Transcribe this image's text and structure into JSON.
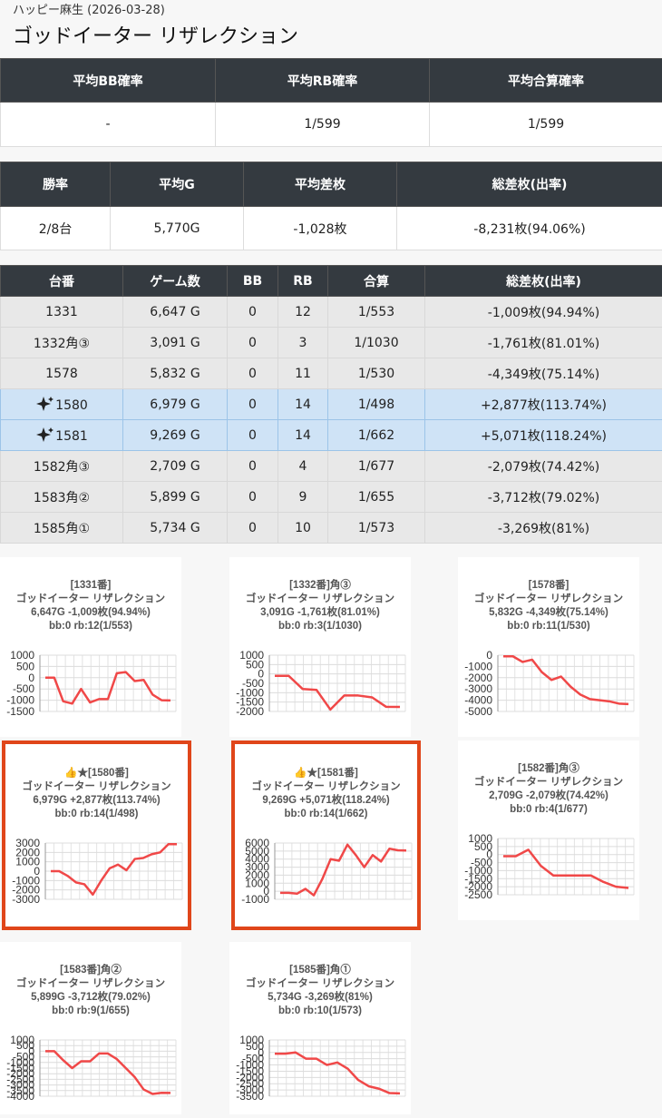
{
  "header": {
    "subtitle": "ハッピー麻生 (2026-03-28)",
    "title": "ゴッドイーター リザレクション"
  },
  "summary1": {
    "headers": [
      "平均BB確率",
      "平均RB確率",
      "平均合算確率"
    ],
    "row": [
      "-",
      "1/599",
      "1/599"
    ]
  },
  "summary2": {
    "headers": [
      "勝率",
      "平均G",
      "平均差枚",
      "総差枚(出率)"
    ],
    "row": [
      "2/8台",
      "5,770G",
      "-1,028枚",
      "-8,231枚(94.06%)"
    ]
  },
  "machines": {
    "headers": [
      "台番",
      "ゲーム数",
      "BB",
      "RB",
      "合算",
      "総差枚(出率)"
    ],
    "rows": [
      {
        "cells": [
          "1331",
          "6,647 G",
          "0",
          "12",
          "1/553",
          "-1,009枚(94.94%)"
        ]
      },
      {
        "cells": [
          "1332角③",
          "3,091 G",
          "0",
          "3",
          "1/1030",
          "-1,761枚(81.01%)"
        ]
      },
      {
        "cells": [
          "1578",
          "5,832 G",
          "0",
          "11",
          "1/530",
          "-4,349枚(75.14%)"
        ]
      },
      {
        "cells": [
          "1580",
          "6,979 G",
          "0",
          "14",
          "1/498",
          "+2,877枚(113.74%)"
        ],
        "highlight": true
      },
      {
        "cells": [
          "1581",
          "9,269 G",
          "0",
          "14",
          "1/662",
          "+5,071枚(118.24%)"
        ],
        "highlight": true
      },
      {
        "cells": [
          "1582角③",
          "2,709 G",
          "0",
          "4",
          "1/677",
          "-2,079枚(74.42%)"
        ]
      },
      {
        "cells": [
          "1583角②",
          "5,899 G",
          "0",
          "9",
          "1/655",
          "-3,712枚(79.02%)"
        ]
      },
      {
        "cells": [
          "1585角①",
          "5,734 G",
          "0",
          "10",
          "1/573",
          "-3,269枚(81%)"
        ]
      }
    ]
  },
  "charts": [
    {
      "type": "line",
      "lines": [
        "[1331番]",
        "ゴッドイーター リザレクション",
        "6,647G -1,009枚(94.94%)",
        "bb:0 rb:12(1/553)"
      ],
      "color": "#f04848",
      "ylim": [
        -1500,
        1000
      ],
      "yticks": [
        1000,
        500,
        0,
        -500,
        -1000,
        -1500
      ],
      "values": [
        0,
        0,
        -1050,
        -1150,
        -500,
        -1100,
        -950,
        -950,
        200,
        250,
        -150,
        -100,
        -750,
        -1000,
        -1009
      ]
    },
    {
      "type": "line",
      "lines": [
        "[1332番]角③",
        "ゴッドイーター リザレクション",
        "3,091G -1,761枚(81.01%)",
        "bb:0 rb:3(1/1030)"
      ],
      "color": "#f04848",
      "ylim": [
        -2000,
        1000
      ],
      "yticks": [
        1000,
        500,
        0,
        -500,
        -1000,
        -1500,
        -2000
      ],
      "values": [
        -100,
        -100,
        -800,
        -850,
        -1900,
        -1150,
        -1150,
        -1250,
        -1750,
        -1761
      ]
    },
    {
      "type": "line",
      "lines": [
        "[1578番]",
        "ゴッドイーター リザレクション",
        "5,832G -4,349枚(75.14%)",
        "bb:0 rb:11(1/530)"
      ],
      "color": "#f04848",
      "ylim": [
        -5000,
        0
      ],
      "yticks": [
        0,
        -1000,
        -2000,
        -3000,
        -4000,
        -5000
      ],
      "values": [
        -100,
        -100,
        -600,
        -400,
        -1500,
        -2200,
        -1900,
        -2800,
        -3500,
        -3900,
        -4000,
        -4100,
        -4300,
        -4349
      ]
    },
    {
      "type": "line",
      "highlight": true,
      "lines": [
        "👍★[1580番]",
        "ゴッドイーター リザレクション",
        "6,979G +2,877枚(113.74%)",
        "bb:0 rb:14(1/498)"
      ],
      "color": "#f04848",
      "ylim": [
        -3000,
        3000
      ],
      "yticks": [
        3000,
        2000,
        1000,
        0,
        -1000,
        -2000,
        -3000
      ],
      "values": [
        0,
        0,
        -500,
        -1200,
        -1400,
        -2500,
        -1000,
        300,
        700,
        100,
        1300,
        1400,
        1800,
        2000,
        2877,
        2877
      ]
    },
    {
      "type": "line",
      "highlight": true,
      "lines": [
        "👍★[1581番]",
        "ゴッドイーター リザレクション",
        "9,269G +5,071枚(118.24%)",
        "bb:0 rb:14(1/662)"
      ],
      "color": "#f04848",
      "ylim": [
        -1000,
        6000
      ],
      "yticks": [
        6000,
        5000,
        4000,
        3000,
        2000,
        1000,
        0,
        -1000
      ],
      "values": [
        -200,
        -200,
        -300,
        300,
        -500,
        1500,
        4000,
        3800,
        5800,
        4500,
        3000,
        4500,
        3700,
        5300,
        5100,
        5071
      ]
    },
    {
      "type": "line",
      "lines": [
        "[1582番]角③",
        "ゴッドイーター リザレクション",
        "2,709G -2,079枚(74.42%)",
        "bb:0 rb:4(1/677)"
      ],
      "color": "#f04848",
      "ylim": [
        -2500,
        1000
      ],
      "yticks": [
        1000,
        500,
        0,
        -500,
        -1000,
        -1500,
        -2000,
        -2500
      ],
      "values": [
        -100,
        -100,
        300,
        -700,
        -1300,
        -1300,
        -1300,
        -1300,
        -1700,
        -2000,
        -2079
      ]
    },
    {
      "type": "line",
      "lines": [
        "[1583番]角②",
        "ゴッドイーター リザレクション",
        "5,899G -3,712枚(79.02%)",
        "bb:0 rb:9(1/655)"
      ],
      "color": "#f04848",
      "ylim": [
        -4000,
        1000
      ],
      "yticks": [
        1000,
        500,
        0,
        -500,
        -1000,
        -1500,
        -2000,
        -2500,
        -3000,
        -3500,
        -4000
      ],
      "values": [
        0,
        0,
        -800,
        -1500,
        -900,
        -900,
        -200,
        -200,
        -700,
        -1500,
        -2300,
        -3400,
        -3800,
        -3700,
        -3712
      ]
    },
    {
      "type": "line",
      "lines": [
        "[1585番]角①",
        "ゴッドイーター リザレクション",
        "5,734G -3,269枚(81%)",
        "bb:0 rb:10(1/573)"
      ],
      "color": "#f04848",
      "ylim": [
        -3500,
        1000
      ],
      "yticks": [
        1000,
        500,
        0,
        -500,
        -1000,
        -1500,
        -2000,
        -2500,
        -3000,
        -3500
      ],
      "values": [
        -100,
        -100,
        0,
        -500,
        -500,
        -1000,
        -800,
        -1300,
        -2200,
        -2700,
        -2900,
        -3250,
        -3269
      ]
    }
  ]
}
